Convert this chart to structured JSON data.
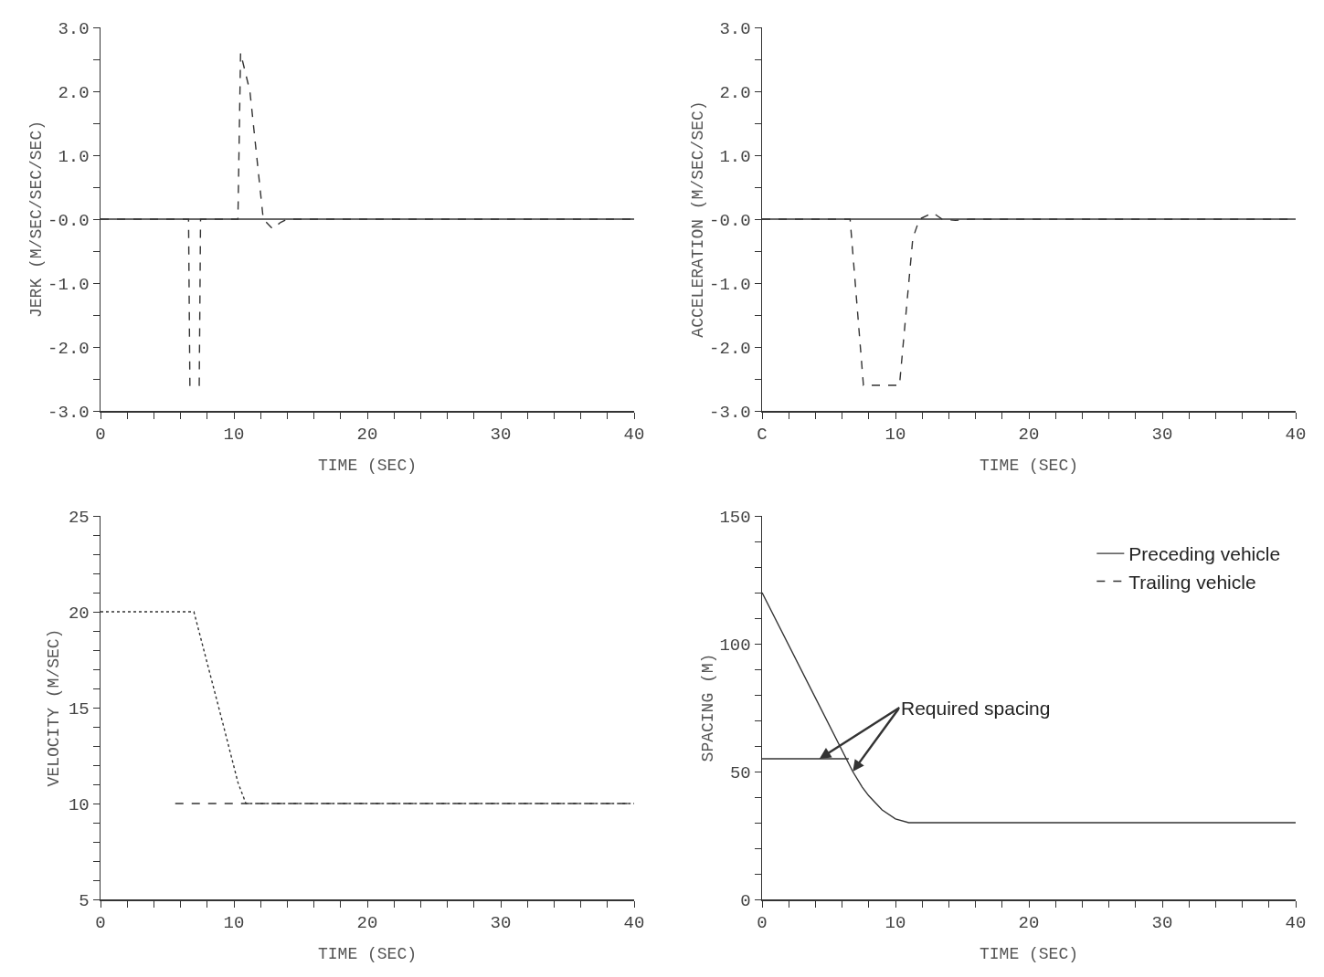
{
  "chart_data": [
    {
      "type": "line",
      "xlabel": "TIME (SEC)",
      "ylabel": "JERK (M/SEC/SEC/SEC)",
      "xlim": [
        0,
        40
      ],
      "ylim": [
        -3,
        3
      ],
      "xticks": [
        0,
        {
          "value": 2,
          "label": null
        },
        {
          "value": 4,
          "label": null
        },
        {
          "value": 6,
          "label": null
        },
        {
          "value": 8,
          "label": null
        },
        10,
        {
          "value": 12,
          "label": null
        },
        {
          "value": 14,
          "label": null
        },
        {
          "value": 16,
          "label": null
        },
        {
          "value": 18,
          "label": null
        },
        20,
        {
          "value": 22,
          "label": null
        },
        {
          "value": 24,
          "label": null
        },
        {
          "value": 26,
          "label": null
        },
        {
          "value": 28,
          "label": null
        },
        30,
        {
          "value": 32,
          "label": null
        },
        {
          "value": 34,
          "label": null
        },
        {
          "value": 36,
          "label": null
        },
        {
          "value": 38,
          "label": null
        },
        40
      ],
      "yticks": [
        {
          "value": -3,
          "label": "-3.0"
        },
        {
          "value": -2.5,
          "label": null
        },
        {
          "value": -2,
          "label": "-2.0"
        },
        {
          "value": -1.5,
          "label": null
        },
        {
          "value": -1,
          "label": "-1.0"
        },
        {
          "value": -0.5,
          "label": null
        },
        {
          "value": 0,
          "label": "-0.0"
        },
        {
          "value": 0.5,
          "label": null
        },
        {
          "value": 1,
          "label": "1.0"
        },
        {
          "value": 1.5,
          "label": null
        },
        {
          "value": 2,
          "label": "2.0"
        },
        {
          "value": 2.5,
          "label": null
        },
        {
          "value": 3,
          "label": "3.0"
        }
      ],
      "series": [
        {
          "color": "#333333",
          "line_style": "solid",
          "x": [
            0,
            40
          ],
          "values": [
            0,
            0
          ]
        },
        {
          "color": "#333333",
          "line_style": "dashed",
          "x": [
            0,
            6.6,
            6.7,
            7.4,
            7.5,
            10.3,
            10.5,
            11.2,
            12.2,
            12.9,
            13.5,
            14,
            40
          ],
          "values": [
            0,
            0,
            -2.6,
            -2.6,
            0,
            0,
            2.6,
            2,
            0,
            -0.15,
            -0.05,
            0,
            0
          ]
        }
      ]
    },
    {
      "type": "line",
      "xlabel": "TIME (SEC)",
      "ylabel": "ACCELERATION (M/SEC/SEC)",
      "xlim": [
        0,
        40
      ],
      "ylim": [
        -3,
        3
      ],
      "xticks": [
        {
          "value": 0,
          "label": "C"
        },
        {
          "value": 2,
          "label": null
        },
        {
          "value": 4,
          "label": null
        },
        {
          "value": 6,
          "label": null
        },
        {
          "value": 8,
          "label": null
        },
        10,
        {
          "value": 12,
          "label": null
        },
        {
          "value": 14,
          "label": null
        },
        {
          "value": 16,
          "label": null
        },
        {
          "value": 18,
          "label": null
        },
        20,
        {
          "value": 22,
          "label": null
        },
        {
          "value": 24,
          "label": null
        },
        {
          "value": 26,
          "label": null
        },
        {
          "value": 28,
          "label": null
        },
        30,
        {
          "value": 32,
          "label": null
        },
        {
          "value": 34,
          "label": null
        },
        {
          "value": 36,
          "label": null
        },
        {
          "value": 38,
          "label": null
        },
        40
      ],
      "yticks": [
        {
          "value": -3,
          "label": "-3.0"
        },
        {
          "value": -2.5,
          "label": null
        },
        {
          "value": -2,
          "label": "-2.0"
        },
        {
          "value": -1.5,
          "label": null
        },
        {
          "value": -1,
          "label": "-1.0"
        },
        {
          "value": -0.5,
          "label": null
        },
        {
          "value": 0,
          "label": "-0.0"
        },
        {
          "value": 0.5,
          "label": null
        },
        {
          "value": 1,
          "label": "1.0"
        },
        {
          "value": 1.5,
          "label": null
        },
        {
          "value": 2,
          "label": "2.0"
        },
        {
          "value": 2.5,
          "label": null
        },
        {
          "value": 3,
          "label": "3.0"
        }
      ],
      "series": [
        {
          "color": "#333333",
          "line_style": "solid",
          "x": [
            0,
            40
          ],
          "values": [
            0,
            0
          ]
        },
        {
          "color": "#333333",
          "line_style": "dashed",
          "x": [
            0,
            6.6,
            7.6,
            10.3,
            11.3,
            11.8,
            12.8,
            13.5,
            14.5,
            15.5,
            40
          ],
          "values": [
            0,
            0,
            -2.6,
            -2.6,
            -0.3,
            0,
            0.1,
            0,
            -0.02,
            0,
            0
          ]
        }
      ]
    },
    {
      "type": "line",
      "xlabel": "TIME (SEC)",
      "ylabel": "VELOCITY (M/SEC)",
      "xlim": [
        0,
        40
      ],
      "ylim": [
        5,
        25
      ],
      "xticks": [
        0,
        {
          "value": 2,
          "label": null
        },
        {
          "value": 4,
          "label": null
        },
        {
          "value": 6,
          "label": null
        },
        {
          "value": 8,
          "label": null
        },
        10,
        {
          "value": 12,
          "label": null
        },
        {
          "value": 14,
          "label": null
        },
        {
          "value": 16,
          "label": null
        },
        {
          "value": 18,
          "label": null
        },
        20,
        {
          "value": 22,
          "label": null
        },
        {
          "value": 24,
          "label": null
        },
        {
          "value": 26,
          "label": null
        },
        {
          "value": 28,
          "label": null
        },
        30,
        {
          "value": 32,
          "label": null
        },
        {
          "value": 34,
          "label": null
        },
        {
          "value": 36,
          "label": null
        },
        {
          "value": 38,
          "label": null
        },
        40
      ],
      "yticks": [
        5,
        {
          "value": 6,
          "label": null
        },
        {
          "value": 7,
          "label": null
        },
        {
          "value": 8,
          "label": null
        },
        {
          "value": 9,
          "label": null
        },
        10,
        {
          "value": 11,
          "label": null
        },
        {
          "value": 12,
          "label": null
        },
        {
          "value": 13,
          "label": null
        },
        {
          "value": 14,
          "label": null
        },
        15,
        {
          "value": 16,
          "label": null
        },
        {
          "value": 17,
          "label": null
        },
        {
          "value": 18,
          "label": null
        },
        {
          "value": 19,
          "label": null
        },
        20,
        {
          "value": 21,
          "label": null
        },
        {
          "value": 22,
          "label": null
        },
        {
          "value": 23,
          "label": null
        },
        {
          "value": 24,
          "label": null
        },
        25
      ],
      "series": [
        {
          "color": "#333333",
          "line_style": "dashed",
          "x": [
            5.6,
            40
          ],
          "values": [
            10,
            10
          ]
        },
        {
          "color": "#333333",
          "line_style": "dotted",
          "x": [
            0,
            7,
            9.2,
            10.3,
            10.9,
            11.5,
            40
          ],
          "values": [
            20,
            20,
            14.1,
            11.1,
            10,
            10,
            10
          ]
        }
      ]
    },
    {
      "type": "line",
      "xlabel": "TIME (SEC)",
      "ylabel": "SPACING (M)",
      "xlim": [
        0,
        40
      ],
      "ylim": [
        0,
        150
      ],
      "legend": "top right",
      "xticks": [
        0,
        {
          "value": 2,
          "label": null
        },
        {
          "value": 4,
          "label": null
        },
        {
          "value": 6,
          "label": null
        },
        {
          "value": 8,
          "label": null
        },
        10,
        {
          "value": 12,
          "label": null
        },
        {
          "value": 14,
          "label": null
        },
        {
          "value": 16,
          "label": null
        },
        {
          "value": 18,
          "label": null
        },
        20,
        {
          "value": 22,
          "label": null
        },
        {
          "value": 24,
          "label": null
        },
        {
          "value": 26,
          "label": null
        },
        {
          "value": 28,
          "label": null
        },
        30,
        {
          "value": 32,
          "label": null
        },
        {
          "value": 34,
          "label": null
        },
        {
          "value": 36,
          "label": null
        },
        {
          "value": 38,
          "label": null
        },
        40
      ],
      "yticks": [
        0,
        {
          "value": 10,
          "label": null
        },
        {
          "value": 20,
          "label": null
        },
        {
          "value": 30,
          "label": null
        },
        {
          "value": 40,
          "label": null
        },
        50,
        {
          "value": 60,
          "label": null
        },
        {
          "value": 70,
          "label": null
        },
        {
          "value": 80,
          "label": null
        },
        {
          "value": 90,
          "label": null
        },
        100,
        {
          "value": 110,
          "label": null
        },
        {
          "value": 120,
          "label": null
        },
        {
          "value": 130,
          "label": null
        },
        {
          "value": 140,
          "label": null
        },
        150
      ],
      "annotations": [
        {
          "text": "Required spacing",
          "x": 4.3,
          "y": 55
        }
      ],
      "series": [
        {
          "color": "#333333",
          "line_style": "solid",
          "x": [
            0,
            6.8,
            7.5,
            8,
            9,
            10,
            11,
            12,
            40
          ],
          "values": [
            120,
            50,
            44,
            40.5,
            35,
            31.5,
            30,
            30,
            30
          ]
        },
        {
          "color": "#333333",
          "line_style": "solid",
          "x": [
            0,
            6.5
          ],
          "values": [
            55,
            55
          ]
        },
        {
          "name": "Preceding vehicle",
          "color": "#333333",
          "line_style": "solid",
          "values": [
            null
          ]
        },
        {
          "name": "Trailing vehicle",
          "color": "#333333",
          "line_style": "dashed",
          "values": [
            null
          ]
        }
      ]
    }
  ]
}
